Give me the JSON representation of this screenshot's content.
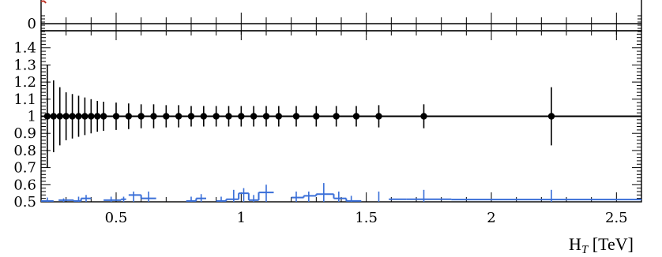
{
  "chart_data": {
    "type": "scatter",
    "top_panel": {
      "ytick_labels": [
        "0"
      ],
      "xlim": [
        0.2,
        2.6
      ]
    },
    "ratio_panel": {
      "xlabel_main": "H",
      "xlabel_sub": "T",
      "xlabel_unit": " [TeV]",
      "xlim": [
        0.2,
        2.6
      ],
      "ylim": [
        0.5,
        1.5
      ],
      "xtick_labels": [
        "0.5",
        "1",
        "1.5",
        "2",
        "2.5"
      ],
      "ytick_labels": [
        "0.5",
        "0.6",
        "0.7",
        "0.8",
        "0.9",
        "1",
        "1.1",
        "1.2",
        "1.3",
        "1.4"
      ],
      "reference_series": {
        "color": "#000000",
        "points": [
          {
            "x": 0.225,
            "y": 1.0,
            "err": 0.3
          },
          {
            "x": 0.25,
            "y": 1.0,
            "err": 0.21
          },
          {
            "x": 0.275,
            "y": 1.0,
            "err": 0.17
          },
          {
            "x": 0.3,
            "y": 1.0,
            "err": 0.14
          },
          {
            "x": 0.325,
            "y": 1.0,
            "err": 0.13
          },
          {
            "x": 0.35,
            "y": 1.0,
            "err": 0.12
          },
          {
            "x": 0.375,
            "y": 1.0,
            "err": 0.11
          },
          {
            "x": 0.4,
            "y": 1.0,
            "err": 0.1
          },
          {
            "x": 0.425,
            "y": 1.0,
            "err": 0.09
          },
          {
            "x": 0.45,
            "y": 1.0,
            "err": 0.085
          },
          {
            "x": 0.5,
            "y": 1.0,
            "err": 0.08
          },
          {
            "x": 0.55,
            "y": 1.0,
            "err": 0.075
          },
          {
            "x": 0.6,
            "y": 1.0,
            "err": 0.07
          },
          {
            "x": 0.65,
            "y": 1.0,
            "err": 0.07
          },
          {
            "x": 0.7,
            "y": 1.0,
            "err": 0.065
          },
          {
            "x": 0.75,
            "y": 1.0,
            "err": 0.065
          },
          {
            "x": 0.8,
            "y": 1.0,
            "err": 0.06
          },
          {
            "x": 0.85,
            "y": 1.0,
            "err": 0.06
          },
          {
            "x": 0.9,
            "y": 1.0,
            "err": 0.06
          },
          {
            "x": 0.95,
            "y": 1.0,
            "err": 0.06
          },
          {
            "x": 1.0,
            "y": 1.0,
            "err": 0.06
          },
          {
            "x": 1.05,
            "y": 1.0,
            "err": 0.06
          },
          {
            "x": 1.1,
            "y": 1.0,
            "err": 0.06
          },
          {
            "x": 1.15,
            "y": 1.0,
            "err": 0.06
          },
          {
            "x": 1.22,
            "y": 1.0,
            "err": 0.06
          },
          {
            "x": 1.3,
            "y": 1.0,
            "err": 0.06
          },
          {
            "x": 1.38,
            "y": 1.0,
            "err": 0.06
          },
          {
            "x": 1.46,
            "y": 1.0,
            "err": 0.06
          },
          {
            "x": 1.55,
            "y": 1.0,
            "err": 0.065
          },
          {
            "x": 1.73,
            "y": 1.0,
            "err": 0.07
          },
          {
            "x": 2.24,
            "y": 1.0,
            "err": 0.17
          }
        ]
      },
      "blue_series": {
        "color": "#3a6fd8",
        "steps": [
          {
            "x0": 0.2,
            "x1": 0.25,
            "y": 0.505
          },
          {
            "x0": 0.27,
            "x1": 0.33,
            "y": 0.51
          },
          {
            "x0": 0.33,
            "x1": 0.36,
            "y": 0.505
          },
          {
            "x0": 0.36,
            "x1": 0.4,
            "y": 0.52
          },
          {
            "x0": 0.45,
            "x1": 0.52,
            "y": 0.51
          },
          {
            "x0": 0.52,
            "x1": 0.54,
            "y": 0.515
          },
          {
            "x0": 0.55,
            "x1": 0.6,
            "y": 0.54
          },
          {
            "x0": 0.6,
            "x1": 0.66,
            "y": 0.52
          },
          {
            "x0": 0.78,
            "x1": 0.82,
            "y": 0.505
          },
          {
            "x0": 0.82,
            "x1": 0.86,
            "y": 0.52
          },
          {
            "x0": 0.9,
            "x1": 0.94,
            "y": 0.505
          },
          {
            "x0": 0.94,
            "x1": 0.99,
            "y": 0.515
          },
          {
            "x0": 0.99,
            "x1": 1.03,
            "y": 0.55
          },
          {
            "x0": 1.03,
            "x1": 1.07,
            "y": 0.51
          },
          {
            "x0": 1.07,
            "x1": 1.13,
            "y": 0.555
          },
          {
            "x0": 1.2,
            "x1": 1.25,
            "y": 0.525
          },
          {
            "x0": 1.25,
            "x1": 1.3,
            "y": 0.535
          },
          {
            "x0": 1.3,
            "x1": 1.37,
            "y": 0.545
          },
          {
            "x0": 1.37,
            "x1": 1.42,
            "y": 0.52
          },
          {
            "x0": 1.42,
            "x1": 1.48,
            "y": 0.505
          },
          {
            "x0": 1.59,
            "x1": 1.66,
            "y": 0.515
          },
          {
            "x0": 1.66,
            "x1": 1.84,
            "y": 0.515
          },
          {
            "x0": 1.84,
            "x1": 2.6,
            "y": 0.513
          }
        ],
        "errors": [
          {
            "x": 0.225,
            "lo": 0.5,
            "hi": 0.525
          },
          {
            "x": 0.29,
            "lo": 0.5,
            "hi": 0.52
          },
          {
            "x": 0.35,
            "lo": 0.5,
            "hi": 0.53
          },
          {
            "x": 0.38,
            "lo": 0.5,
            "hi": 0.54
          },
          {
            "x": 0.48,
            "lo": 0.5,
            "hi": 0.53
          },
          {
            "x": 0.53,
            "lo": 0.5,
            "hi": 0.53
          },
          {
            "x": 0.57,
            "lo": 0.5,
            "hi": 0.56
          },
          {
            "x": 0.63,
            "lo": 0.5,
            "hi": 0.56
          },
          {
            "x": 0.8,
            "lo": 0.5,
            "hi": 0.53
          },
          {
            "x": 0.84,
            "lo": 0.5,
            "hi": 0.545
          },
          {
            "x": 0.92,
            "lo": 0.5,
            "hi": 0.53
          },
          {
            "x": 0.97,
            "lo": 0.5,
            "hi": 0.57
          },
          {
            "x": 1.01,
            "lo": 0.5,
            "hi": 0.58
          },
          {
            "x": 1.05,
            "lo": 0.5,
            "hi": 0.54
          },
          {
            "x": 1.1,
            "lo": 0.5,
            "hi": 0.6
          },
          {
            "x": 1.22,
            "lo": 0.5,
            "hi": 0.56
          },
          {
            "x": 1.27,
            "lo": 0.5,
            "hi": 0.56
          },
          {
            "x": 1.33,
            "lo": 0.5,
            "hi": 0.61
          },
          {
            "x": 1.39,
            "lo": 0.5,
            "hi": 0.56
          },
          {
            "x": 1.44,
            "lo": 0.5,
            "hi": 0.535
          },
          {
            "x": 1.55,
            "lo": 0.5,
            "hi": 0.56
          },
          {
            "x": 1.73,
            "lo": 0.5,
            "hi": 0.57
          },
          {
            "x": 2.24,
            "lo": 0.5,
            "hi": 0.57
          }
        ]
      }
    }
  }
}
